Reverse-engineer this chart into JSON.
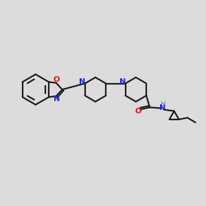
{
  "bg_color": "#dcdcdc",
  "bond_color": "#1a1a1a",
  "N_color": "#2020ee",
  "O_color": "#ee1010",
  "H_color": "#4a9090",
  "line_width": 1.6,
  "figsize": [
    3.0,
    3.0
  ],
  "dpi": 100,
  "xlim": [
    0,
    12
  ],
  "ylim": [
    0,
    10
  ]
}
